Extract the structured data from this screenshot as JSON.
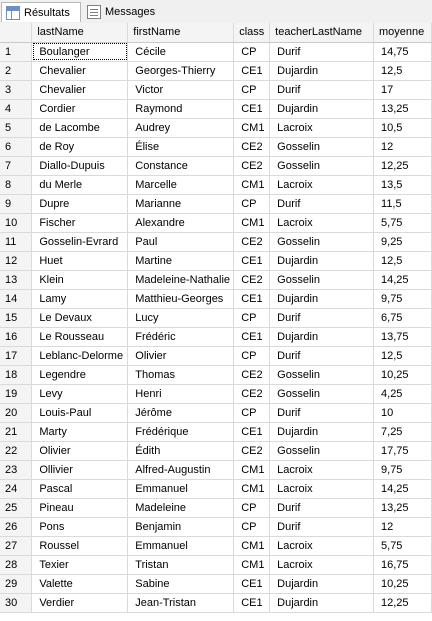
{
  "tabs": [
    {
      "label": "Résultats",
      "icon": "grid-icon"
    },
    {
      "label": "Messages",
      "icon": "messages-icon"
    }
  ],
  "columns": [
    "lastName",
    "firstName",
    "class",
    "teacherLastName",
    "moyenne"
  ],
  "rows": [
    [
      "1",
      "Boulanger",
      "Cécile",
      "CP",
      "Durif",
      "14,75"
    ],
    [
      "2",
      "Chevalier",
      "Georges-Thierry",
      "CE1",
      "Dujardin",
      "12,5"
    ],
    [
      "3",
      "Chevalier",
      "Victor",
      "CP",
      "Durif",
      "17"
    ],
    [
      "4",
      "Cordier",
      "Raymond",
      "CE1",
      "Dujardin",
      "13,25"
    ],
    [
      "5",
      "de Lacombe",
      "Audrey",
      "CM1",
      "Lacroix",
      "10,5"
    ],
    [
      "6",
      "de Roy",
      "Élise",
      "CE2",
      "Gosselin",
      "12"
    ],
    [
      "7",
      "Diallo-Dupuis",
      "Constance",
      "CE2",
      "Gosselin",
      "12,25"
    ],
    [
      "8",
      "du Merle",
      "Marcelle",
      "CM1",
      "Lacroix",
      "13,5"
    ],
    [
      "9",
      "Dupre",
      "Marianne",
      "CP",
      "Durif",
      "11,5"
    ],
    [
      "10",
      "Fischer",
      "Alexandre",
      "CM1",
      "Lacroix",
      "5,75"
    ],
    [
      "11",
      "Gosselin-Evrard",
      "Paul",
      "CE2",
      "Gosselin",
      "9,25"
    ],
    [
      "12",
      "Huet",
      "Martine",
      "CE1",
      "Dujardin",
      "12,5"
    ],
    [
      "13",
      "Klein",
      "Madeleine-Nathalie",
      "CE2",
      "Gosselin",
      "14,25"
    ],
    [
      "14",
      "Lamy",
      "Matthieu-Georges",
      "CE1",
      "Dujardin",
      "9,75"
    ],
    [
      "15",
      "Le Devaux",
      "Lucy",
      "CP",
      "Durif",
      "6,75"
    ],
    [
      "16",
      "Le Rousseau",
      "Frédéric",
      "CE1",
      "Dujardin",
      "13,75"
    ],
    [
      "17",
      "Leblanc-Delorme",
      "Olivier",
      "CP",
      "Durif",
      "12,5"
    ],
    [
      "18",
      "Legendre",
      "Thomas",
      "CE2",
      "Gosselin",
      "10,25"
    ],
    [
      "19",
      "Levy",
      "Henri",
      "CE2",
      "Gosselin",
      "4,25"
    ],
    [
      "20",
      "Louis-Paul",
      "Jérôme",
      "CP",
      "Durif",
      "10"
    ],
    [
      "21",
      "Marty",
      "Frédérique",
      "CE1",
      "Dujardin",
      "7,25"
    ],
    [
      "22",
      "Olivier",
      "Édith",
      "CE2",
      "Gosselin",
      "17,75"
    ],
    [
      "23",
      "Ollivier",
      "Alfred-Augustin",
      "CM1",
      "Lacroix",
      "9,75"
    ],
    [
      "24",
      "Pascal",
      "Emmanuel",
      "CM1",
      "Lacroix",
      "14,25"
    ],
    [
      "25",
      "Pineau",
      "Madeleine",
      "CP",
      "Durif",
      "13,25"
    ],
    [
      "26",
      "Pons",
      "Benjamin",
      "CP",
      "Durif",
      "12"
    ],
    [
      "27",
      "Roussel",
      "Emmanuel",
      "CM1",
      "Lacroix",
      "5,75"
    ],
    [
      "28",
      "Texier",
      "Tristan",
      "CM1",
      "Lacroix",
      "16,75"
    ],
    [
      "29",
      "Valette",
      "Sabine",
      "CE1",
      "Dujardin",
      "10,25"
    ],
    [
      "30",
      "Verdier",
      "Jean-Tristan",
      "CE1",
      "Dujardin",
      "12,25"
    ]
  ]
}
